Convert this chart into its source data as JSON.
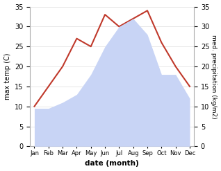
{
  "months": [
    "Jan",
    "Feb",
    "Mar",
    "Apr",
    "May",
    "Jun",
    "Jul",
    "Aug",
    "Sep",
    "Oct",
    "Nov",
    "Dec"
  ],
  "temp": [
    10,
    15,
    20,
    27,
    25,
    33,
    30,
    32,
    34,
    26,
    20,
    15
  ],
  "precip": [
    9.5,
    9.5,
    11,
    13,
    18,
    25,
    30,
    32,
    28,
    18,
    18,
    12
  ],
  "temp_color": "#c0392b",
  "precip_fill_color": "#c8d4f5",
  "ylim": [
    0,
    35
  ],
  "xlabel": "date (month)",
  "ylabel_left": "max temp (C)",
  "ylabel_right": "med. precipitation (kg/m2)",
  "background_color": "#ffffff"
}
